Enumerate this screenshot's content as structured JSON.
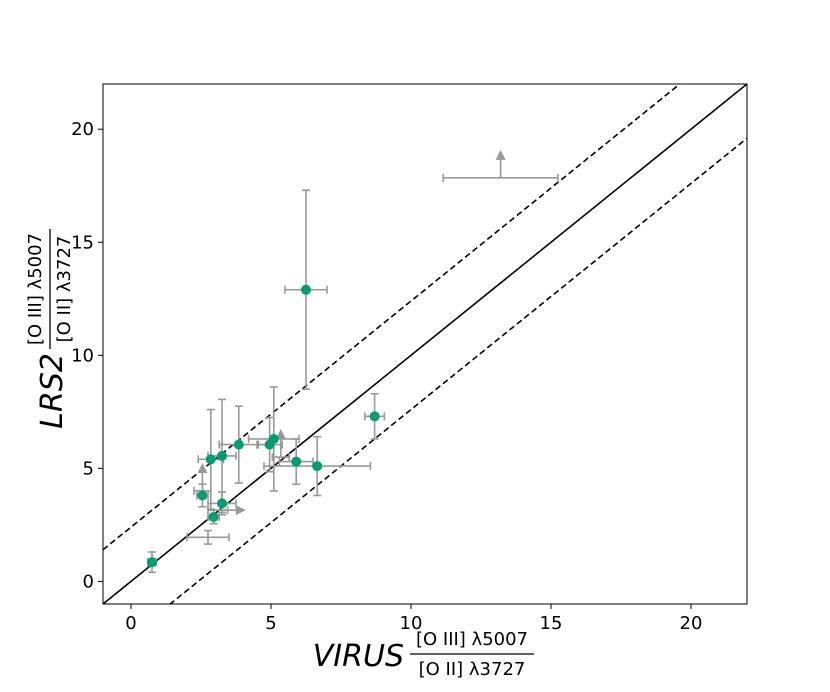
{
  "chart_data": {
    "type": "scatter",
    "xlabel": {
      "main": "VIRUS",
      "numerator": "[O III] λ5007",
      "denominator": "[O II] λ3727"
    },
    "ylabel": {
      "main": "LRS2",
      "numerator": "[O III] λ5007",
      "denominator": "[O II] λ3727"
    },
    "xlim": [
      -1,
      22
    ],
    "ylim": [
      -1,
      22
    ],
    "xticks": [
      0,
      5,
      10,
      15,
      20
    ],
    "yticks": [
      0,
      5,
      10,
      15,
      20
    ],
    "grid": false,
    "colors": {
      "point": "#009e73",
      "errorbar": "#999999",
      "line": "#000000"
    },
    "reference_lines": [
      {
        "kind": "one-to-one",
        "offset": 0,
        "style": "solid"
      },
      {
        "kind": "offset",
        "offset": 2.4,
        "style": "dashed"
      },
      {
        "kind": "offset",
        "offset": -2.4,
        "style": "dashed"
      }
    ],
    "points": [
      {
        "x": 0.75,
        "y": 0.85,
        "xerr": [
          0.15,
          0.15
        ],
        "yerr": [
          0.45,
          0.45
        ]
      },
      {
        "x": 2.55,
        "y": 3.8,
        "xerr": [
          0.2,
          0.2
        ],
        "yerr": [
          0.5,
          0.5
        ]
      },
      {
        "x": 2.85,
        "y": 5.4,
        "xerr": [
          0.45,
          0.45
        ],
        "yerr": [
          2.2,
          2.2
        ]
      },
      {
        "x": 2.95,
        "y": 2.85,
        "xerr": [
          0.2,
          0.2
        ],
        "yerr": [
          0.3,
          0.3
        ]
      },
      {
        "x": 3.25,
        "y": 5.55,
        "xerr": [
          0.5,
          0.5
        ],
        "yerr": [
          2.5,
          2.5
        ]
      },
      {
        "x": 3.25,
        "y": 3.45,
        "xerr": [
          0.5,
          0.5
        ],
        "yerr": [
          0.5,
          0.5
        ]
      },
      {
        "x": 3.85,
        "y": 6.05,
        "xerr": [
          0.7,
          0.7
        ],
        "yerr": [
          1.7,
          1.7
        ]
      },
      {
        "x": 4.95,
        "y": 6.05,
        "xerr": [
          0.45,
          0.45
        ],
        "yerr": [
          1.2,
          1.2
        ]
      },
      {
        "x": 5.1,
        "y": 6.3,
        "xerr": [
          0.9,
          0.9
        ],
        "yerr": [
          2.3,
          2.3
        ]
      },
      {
        "x": 5.9,
        "y": 5.3,
        "xerr": [
          0.6,
          0.6
        ],
        "yerr": [
          1.0,
          1.0
        ]
      },
      {
        "x": 6.25,
        "y": 12.9,
        "xerr": [
          0.75,
          0.75
        ],
        "yerr": [
          4.4,
          4.4
        ]
      },
      {
        "x": 6.65,
        "y": 5.1,
        "xerr": [
          1.9,
          1.9
        ],
        "yerr": [
          1.3,
          1.3
        ]
      },
      {
        "x": 8.7,
        "y": 7.3,
        "xerr": [
          0.35,
          0.35
        ],
        "yerr": [
          1.0,
          1.0
        ]
      }
    ],
    "limits": [
      {
        "x": 2.55,
        "y": 4.0,
        "xerr": [
          0.3,
          0.3
        ],
        "arrow": "up"
      },
      {
        "x": 3.1,
        "y": 3.15,
        "xerr": [
          0.35,
          0.35
        ],
        "arrow": "right"
      },
      {
        "x": 2.75,
        "y": 1.95,
        "xerr": [
          0.75,
          0.75
        ],
        "yerr": [
          0.3,
          0.3
        ],
        "arrow": "none"
      },
      {
        "x": 5.35,
        "y": 5.5,
        "xerr": [
          0.3,
          0.3
        ],
        "arrow": "up"
      },
      {
        "x": 13.2,
        "y": 17.85,
        "xerr": [
          2.05,
          2.05
        ],
        "arrow": "up"
      }
    ]
  }
}
